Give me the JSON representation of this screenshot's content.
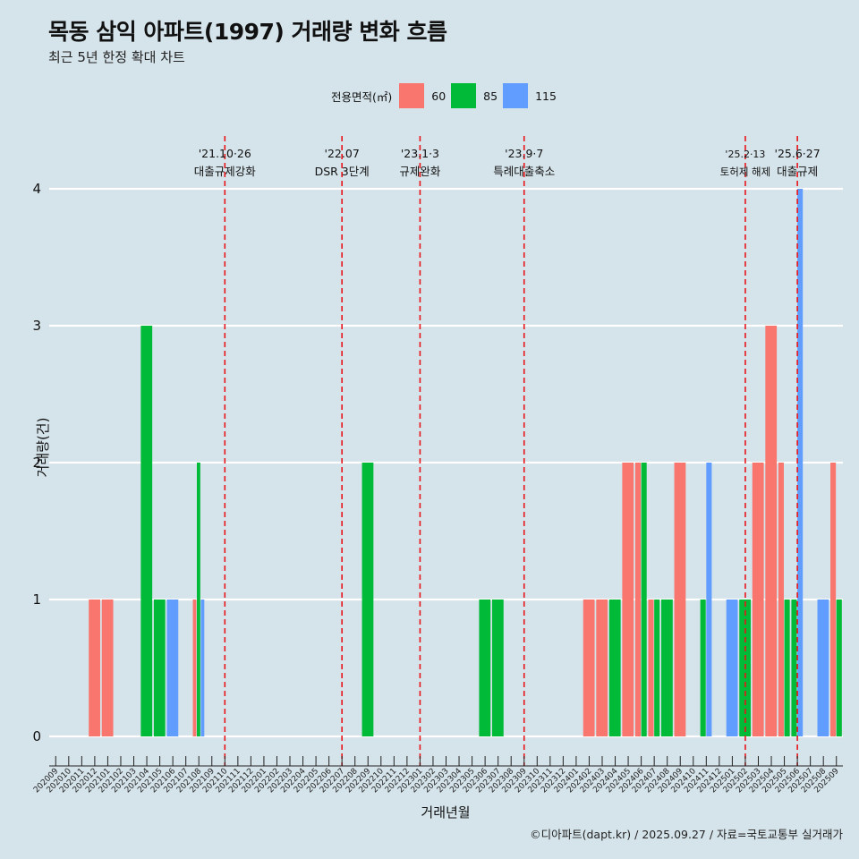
{
  "title": "목동 삼익 아파트(1997) 거래량 변화 흐름",
  "subtitle": "최근 5년 한정 확대 차트",
  "caption": "©디아파트(dapt.kr) / 2025.09.27 / 자료=국토교통부 실거래가",
  "chart_data": {
    "type": "bar",
    "title": "목동 삼익 아파트(1997) 거래량 변화 흐름",
    "subtitle": "최근 5년 한정 확대 차트",
    "xlabel": "거래년월",
    "ylabel": "거래량(건)",
    "ylim": [
      0,
      4
    ],
    "yticks": [
      0,
      1,
      2,
      3,
      4
    ],
    "grid": true,
    "legend": {
      "title": "전용면적(㎡)",
      "placement": "top",
      "entries": [
        {
          "name": "60",
          "color": "#f8766d"
        },
        {
          "name": "85",
          "color": "#00ba38"
        },
        {
          "name": "115",
          "color": "#619cff"
        }
      ]
    },
    "categories": [
      "202009",
      "202010",
      "202011",
      "202012",
      "202101",
      "202102",
      "202103",
      "202104",
      "202105",
      "202106",
      "202107",
      "202108",
      "202109",
      "202110",
      "202111",
      "202112",
      "202201",
      "202202",
      "202203",
      "202204",
      "202205",
      "202206",
      "202207",
      "202208",
      "202209",
      "202210",
      "202211",
      "202212",
      "202301",
      "202302",
      "202303",
      "202304",
      "202305",
      "202306",
      "202307",
      "202308",
      "202309",
      "202310",
      "202311",
      "202312",
      "202401",
      "202402",
      "202403",
      "202404",
      "202405",
      "202406",
      "202407",
      "202408",
      "202409",
      "202410",
      "202411",
      "202412",
      "202501",
      "202502",
      "202503",
      "202504",
      "202505",
      "202506",
      "202507",
      "202508",
      "202509"
    ],
    "series": [
      {
        "name": "60",
        "values": [
          0,
          0,
          0,
          1,
          1,
          0,
          0,
          0,
          0,
          0,
          0,
          1,
          0,
          0,
          0,
          0,
          0,
          0,
          0,
          0,
          0,
          0,
          0,
          0,
          0,
          0,
          0,
          0,
          0,
          0,
          0,
          0,
          0,
          0,
          0,
          0,
          0,
          0,
          0,
          0,
          0,
          1,
          1,
          0,
          2,
          2,
          1,
          0,
          2,
          0,
          0,
          0,
          0,
          0,
          2,
          3,
          2,
          0,
          0,
          0,
          2
        ]
      },
      {
        "name": "85",
        "values": [
          0,
          0,
          0,
          0,
          0,
          0,
          0,
          3,
          1,
          0,
          0,
          2,
          0,
          0,
          0,
          0,
          0,
          0,
          0,
          0,
          0,
          0,
          0,
          0,
          2,
          0,
          0,
          0,
          0,
          0,
          0,
          0,
          0,
          1,
          1,
          0,
          0,
          0,
          0,
          0,
          0,
          0,
          0,
          1,
          0,
          2,
          1,
          1,
          0,
          0,
          1,
          0,
          0,
          1,
          0,
          0,
          1,
          1,
          0,
          0,
          1
        ]
      },
      {
        "name": "115",
        "values": [
          0,
          0,
          0,
          0,
          0,
          0,
          0,
          0,
          0,
          1,
          0,
          1,
          0,
          0,
          0,
          0,
          0,
          0,
          0,
          0,
          0,
          0,
          0,
          0,
          0,
          0,
          0,
          0,
          0,
          0,
          0,
          0,
          0,
          0,
          0,
          0,
          0,
          0,
          0,
          0,
          0,
          0,
          0,
          0,
          0,
          0,
          0,
          0,
          0,
          0,
          2,
          0,
          1,
          0,
          0,
          0,
          0,
          4,
          0,
          1,
          0
        ]
      }
    ],
    "annotations": [
      {
        "month": "202110",
        "date": "'21.10·26",
        "label": "대출규제강화"
      },
      {
        "month": "202207",
        "date": "'22.07",
        "label": "DSR 3단계"
      },
      {
        "month": "202301",
        "date": "'23.1·3",
        "label": "규제완화"
      },
      {
        "month": "202309",
        "date": "'23.9·7",
        "label": "특례대출축소"
      },
      {
        "month": "202502",
        "date": "'25.2·13",
        "label": "토허제 해제"
      },
      {
        "month": "202506",
        "date": "'25.6·27",
        "label": "대출규제"
      }
    ]
  }
}
